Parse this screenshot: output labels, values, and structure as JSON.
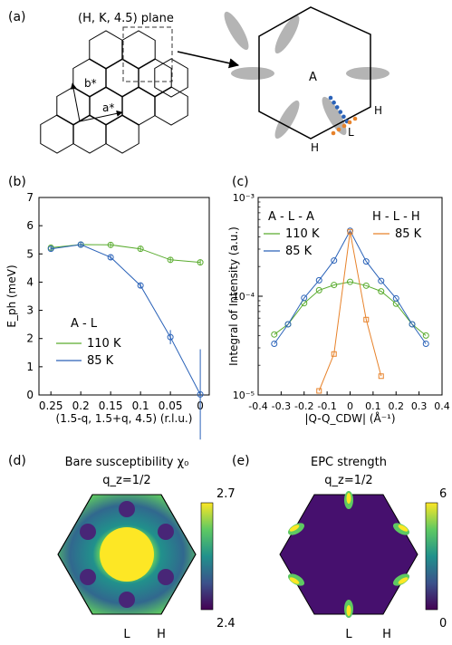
{
  "panels": {
    "a": {
      "label": "(a)",
      "plane_label": "(H, K, 4.5) plane",
      "b_star": "b*",
      "a_star": "a*",
      "A": "A",
      "H_right": "H",
      "H_bottom": "H",
      "L": "L"
    },
    "b": {
      "label": "(b)"
    },
    "c": {
      "label": "(c)"
    },
    "d": {
      "label": "(d)",
      "title": "Bare susceptibility χ₀",
      "subtitle": "q_z=1/2",
      "L": "L",
      "H": "H",
      "colorbar": {
        "max": "2.7",
        "min": "2.4"
      }
    },
    "e": {
      "label": "(e)",
      "title": "EPC strength",
      "subtitle": "q_z=1/2",
      "L": "L",
      "H": "H",
      "colorbar": {
        "max": "6",
        "min": "0"
      }
    }
  },
  "colors": {
    "green": "#5aac2f",
    "blue": "#2a62b8",
    "orange": "#e7822a",
    "gray": "#b4b4b4"
  },
  "chart_data": [
    {
      "type": "line",
      "panel": "b",
      "ylabel": "E_ph (meV)",
      "xlabel": "(1.5-q, 1.5+q, 4.5) (r.l.u.)",
      "xlim": [
        0.27,
        -0.015
      ],
      "ylim": [
        0,
        7
      ],
      "xticks": [
        0.25,
        0.2,
        0.15,
        0.1,
        0.05,
        0
      ],
      "xtick_labels": [
        "0.25",
        "0.2",
        "0.15",
        "0.1",
        "0.05",
        "0"
      ],
      "yticks": [
        0,
        1,
        2,
        3,
        4,
        5,
        6,
        7
      ],
      "ytick_labels": [
        "0",
        "1",
        "2",
        "3",
        "4",
        "5",
        "6",
        "7"
      ],
      "legend_title": "A - L",
      "series": [
        {
          "name": "110 K",
          "color": "green",
          "x": [
            0.25,
            0.2,
            0.15,
            0.1,
            0.05,
            0
          ],
          "y": [
            5.22,
            5.33,
            5.32,
            5.18,
            4.79,
            4.7
          ],
          "err": [
            0.08,
            0.08,
            0.08,
            0.1,
            0.1,
            0.1
          ]
        },
        {
          "name": "85 K",
          "color": "blue",
          "x": [
            0.25,
            0.2,
            0.15,
            0.1,
            0.05,
            0
          ],
          "y": [
            5.18,
            5.33,
            4.88,
            3.88,
            2.05,
            0.02
          ],
          "err": [
            0.08,
            0.08,
            0.08,
            0.1,
            0.25,
            1.6
          ]
        }
      ]
    },
    {
      "type": "line",
      "panel": "c",
      "scale": "log",
      "ylabel": "Integral of Intensity (a.u.)",
      "xlabel": "|Q-Q_CDW| (Å⁻¹)",
      "xlim": [
        -0.4,
        0.4
      ],
      "ylim": [
        1e-05,
        0.001
      ],
      "xticks": [
        -0.4,
        -0.3,
        -0.2,
        -0.1,
        0,
        0.1,
        0.2,
        0.3,
        0.4
      ],
      "xtick_labels": [
        "-0.4",
        "-0.3",
        "-0.2",
        "-0.1",
        "0",
        "0.1",
        "0.2",
        "0.3",
        "0.4"
      ],
      "ytick_labels": [
        "10⁻³",
        "10⁻⁴",
        "10⁻⁵"
      ],
      "legend_title_left": "A - L - A",
      "legend_title_right": "H - L - H",
      "series": [
        {
          "name": "110 K",
          "color": "green",
          "marker": "circle",
          "x": [
            -0.33,
            -0.27,
            -0.2,
            -0.135,
            -0.07,
            0,
            0.07,
            0.135,
            0.2,
            0.27,
            0.33
          ],
          "y": [
            4.1e-05,
            5.2e-05,
            8.5e-05,
            0.000115,
            0.00013,
            0.00014,
            0.000128,
            0.000112,
            8.4e-05,
            5.2e-05,
            4e-05
          ]
        },
        {
          "name": "85 K",
          "color": "blue",
          "marker": "circle",
          "x": [
            -0.33,
            -0.27,
            -0.2,
            -0.135,
            -0.07,
            0,
            0.07,
            0.135,
            0.2,
            0.27,
            0.33
          ],
          "y": [
            3.3e-05,
            5.2e-05,
            9.6e-05,
            0.000145,
            0.00023,
            0.00046,
            0.000225,
            0.000143,
            9.5e-05,
            5.2e-05,
            3.3e-05
          ]
        },
        {
          "name": "85 K",
          "color": "orange",
          "marker": "square",
          "x": [
            -0.135,
            -0.07,
            0,
            0.07,
            0.135
          ],
          "y": [
            1.1e-05,
            2.6e-05,
            0.00045,
            5.8e-05,
            1.55e-05
          ]
        }
      ]
    }
  ]
}
